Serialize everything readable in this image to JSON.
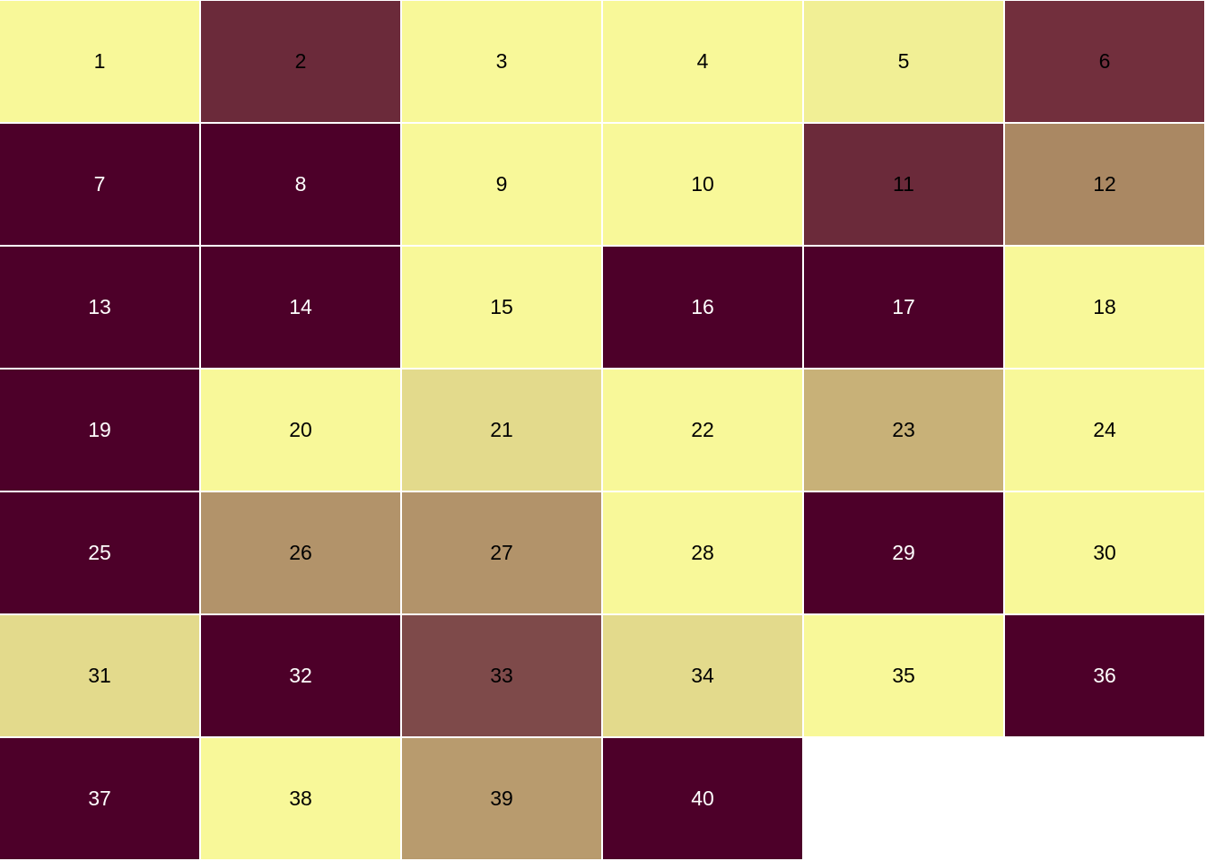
{
  "cells": [
    {
      "label": "1",
      "color": "#f8f899",
      "text_color": "#000000"
    },
    {
      "label": "2",
      "color": "#6b2a3a",
      "text_color": "#000000"
    },
    {
      "label": "3",
      "color": "#f8f899",
      "text_color": "#000000"
    },
    {
      "label": "4",
      "color": "#f8f899",
      "text_color": "#000000"
    },
    {
      "label": "5",
      "color": "#f1ef95",
      "text_color": "#000000"
    },
    {
      "label": "6",
      "color": "#722f3d",
      "text_color": "#000000"
    },
    {
      "label": "7",
      "color": "#4d0029",
      "text_color": "#ffffff"
    },
    {
      "label": "8",
      "color": "#4d0029",
      "text_color": "#ffffff"
    },
    {
      "label": "9",
      "color": "#f8f899",
      "text_color": "#000000"
    },
    {
      "label": "10",
      "color": "#f8f899",
      "text_color": "#000000"
    },
    {
      "label": "11",
      "color": "#6b2a3a",
      "text_color": "#000000"
    },
    {
      "label": "12",
      "color": "#aa8863",
      "text_color": "#000000"
    },
    {
      "label": "13",
      "color": "#4d0029",
      "text_color": "#ffffff"
    },
    {
      "label": "14",
      "color": "#4d0029",
      "text_color": "#ffffff"
    },
    {
      "label": "15",
      "color": "#f8f899",
      "text_color": "#000000"
    },
    {
      "label": "16",
      "color": "#4d0029",
      "text_color": "#ffffff"
    },
    {
      "label": "17",
      "color": "#4d0029",
      "text_color": "#ffffff"
    },
    {
      "label": "18",
      "color": "#f8f899",
      "text_color": "#000000"
    },
    {
      "label": "19",
      "color": "#4d0029",
      "text_color": "#ffffff"
    },
    {
      "label": "20",
      "color": "#f8f899",
      "text_color": "#000000"
    },
    {
      "label": "21",
      "color": "#e3da8c",
      "text_color": "#000000"
    },
    {
      "label": "22",
      "color": "#f8f899",
      "text_color": "#000000"
    },
    {
      "label": "23",
      "color": "#c8b178",
      "text_color": "#000000"
    },
    {
      "label": "24",
      "color": "#f8f899",
      "text_color": "#000000"
    },
    {
      "label": "25",
      "color": "#4d0029",
      "text_color": "#ffffff"
    },
    {
      "label": "26",
      "color": "#b2936a",
      "text_color": "#000000"
    },
    {
      "label": "27",
      "color": "#b2936a",
      "text_color": "#000000"
    },
    {
      "label": "28",
      "color": "#f8f899",
      "text_color": "#000000"
    },
    {
      "label": "29",
      "color": "#4d0029",
      "text_color": "#ffffff"
    },
    {
      "label": "30",
      "color": "#f8f899",
      "text_color": "#000000"
    },
    {
      "label": "31",
      "color": "#e3da8c",
      "text_color": "#000000"
    },
    {
      "label": "32",
      "color": "#4d0029",
      "text_color": "#ffffff"
    },
    {
      "label": "33",
      "color": "#7e4a4a",
      "text_color": "#000000"
    },
    {
      "label": "34",
      "color": "#e3da8c",
      "text_color": "#000000"
    },
    {
      "label": "35",
      "color": "#f8f899",
      "text_color": "#000000"
    },
    {
      "label": "36",
      "color": "#4d0029",
      "text_color": "#ffffff"
    },
    {
      "label": "37",
      "color": "#4d0029",
      "text_color": "#ffffff"
    },
    {
      "label": "38",
      "color": "#f8f899",
      "text_color": "#000000"
    },
    {
      "label": "39",
      "color": "#b89b6e",
      "text_color": "#000000"
    },
    {
      "label": "40",
      "color": "#4d0029",
      "text_color": "#ffffff"
    }
  ]
}
